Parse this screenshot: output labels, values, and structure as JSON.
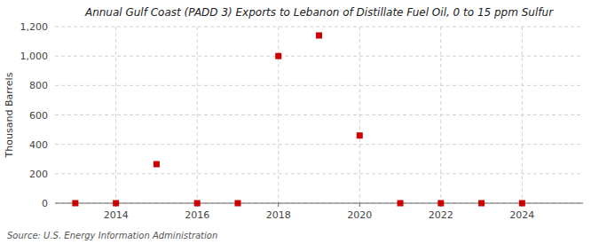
{
  "chart_data": {
    "type": "scatter",
    "title": "Annual Gulf Coast (PADD 3) Exports to Lebanon of Distillate Fuel Oil, 0 to 15 ppm Sulfur",
    "ylabel": "Thousand Barrels",
    "source": "Source: U.S. Energy Information Administration",
    "x": [
      2013,
      2014,
      2015,
      2016,
      2017,
      2018,
      2019,
      2020,
      2021,
      2022,
      2023,
      2024
    ],
    "values": [
      0,
      0,
      265,
      0,
      0,
      1000,
      1140,
      460,
      0,
      0,
      0,
      0
    ],
    "color": "#cc0000",
    "marker": "square",
    "xlim": [
      2012.5,
      2025.5
    ],
    "xticks": [
      2014,
      2016,
      2018,
      2020,
      2022,
      2024
    ],
    "ylim": [
      0,
      1200
    ],
    "yticks": [
      0,
      200,
      400,
      600,
      800,
      {
        "value": 1000,
        "label": "1,000"
      },
      {
        "value": 1200,
        "label": "1,200"
      }
    ],
    "grid": true
  }
}
